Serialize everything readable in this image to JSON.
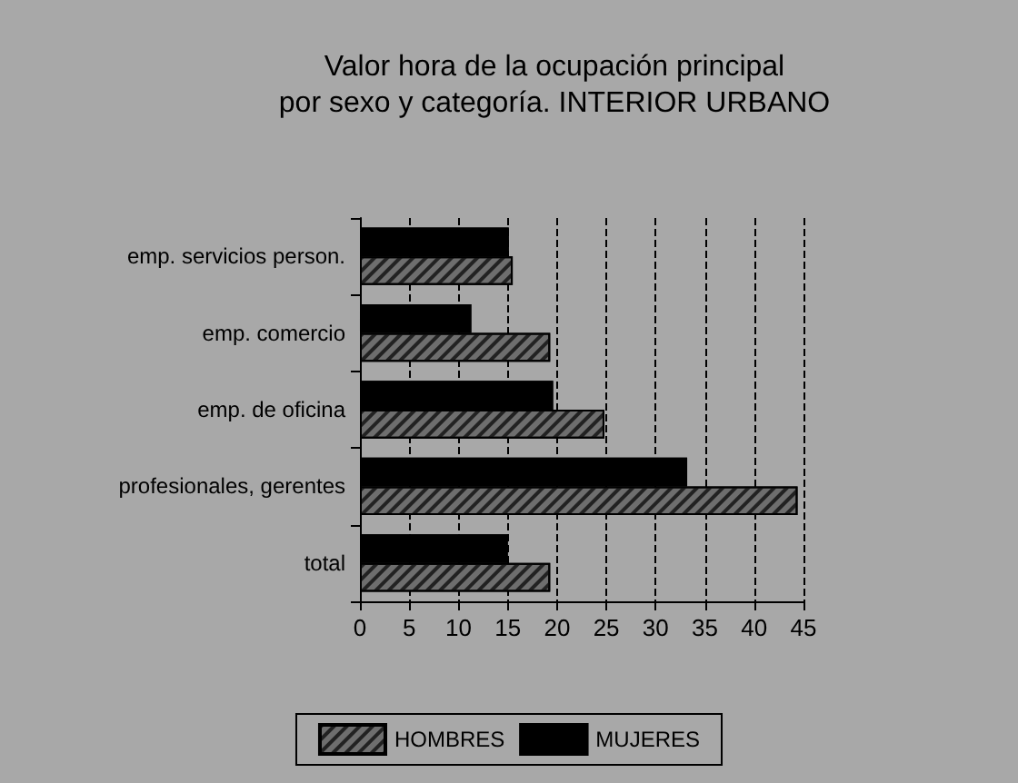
{
  "chart_data": {
    "type": "bar",
    "orientation": "horizontal",
    "title": "Valor hora de la ocupación principal\npor sexo y categoría. INTERIOR URBANO",
    "categories": [
      "emp. servicios person.",
      "emp. comercio",
      "emp. de oficina",
      "profesionales, gerentes",
      "total"
    ],
    "series": [
      {
        "name": "HOMBRES",
        "color": "#6e6e6e",
        "values": [
          15.5,
          19.3,
          24.8,
          44.4,
          19.3
        ]
      },
      {
        "name": "MUJERES",
        "color": "#000000",
        "values": [
          15.1,
          11.3,
          19.6,
          33.2,
          15.0
        ]
      }
    ],
    "xlim": [
      0,
      45
    ],
    "xticks": [
      0,
      5,
      10,
      15,
      20,
      25,
      30,
      35,
      40,
      45
    ],
    "grid": "x",
    "legend": "bottom"
  }
}
